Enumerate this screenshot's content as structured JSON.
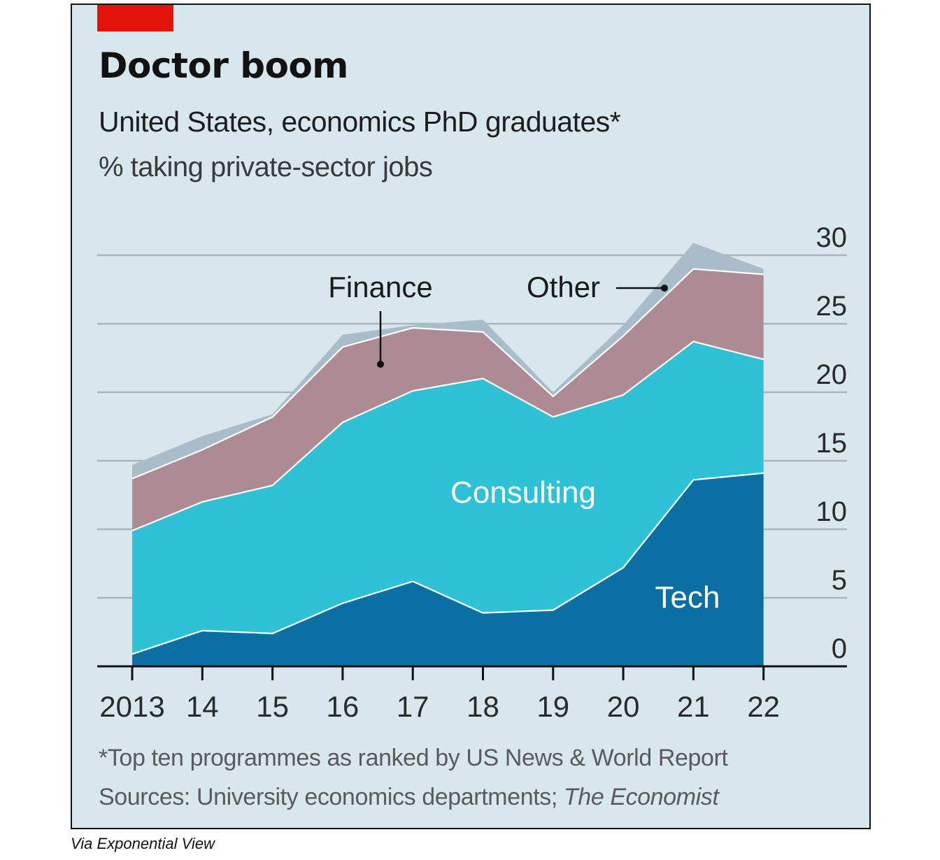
{
  "title": "Doctor boom",
  "subtitle": "United States, economics PhD graduates*",
  "unit_label": "% taking private-sector jobs",
  "footnote": "*Top ten programmes as ranked by US News & World Report",
  "source_prefix": "Sources: University economics departments; ",
  "source_italic": "The Economist",
  "credit": "Via Exponential View",
  "colors": {
    "background": "#d8e6ee",
    "tech": "#0b6fa4",
    "consulting": "#2fc1d6",
    "finance": "#ad8b95",
    "other": "#a8bdc9",
    "accent_red": "#e3120b"
  },
  "chart_data": {
    "type": "area",
    "stacked": true,
    "categories": [
      "2013",
      "14",
      "15",
      "16",
      "17",
      "18",
      "19",
      "20",
      "21",
      "22"
    ],
    "series": [
      {
        "name": "Tech",
        "values": [
          0.9,
          2.6,
          2.4,
          4.6,
          6.2,
          3.9,
          4.1,
          7.2,
          13.6,
          14.1
        ]
      },
      {
        "name": "Consulting",
        "values": [
          9.0,
          9.4,
          10.8,
          13.2,
          13.9,
          17.1,
          14.1,
          12.6,
          10.1,
          8.3
        ]
      },
      {
        "name": "Finance",
        "values": [
          3.8,
          3.8,
          5.0,
          5.5,
          4.6,
          3.4,
          1.5,
          4.3,
          5.3,
          6.2
        ]
      },
      {
        "name": "Other",
        "values": [
          1.0,
          1.0,
          0.2,
          0.9,
          0.2,
          0.9,
          0.3,
          0.8,
          1.9,
          0.4
        ]
      }
    ],
    "ylim": [
      0,
      30
    ],
    "yticks": [
      "0",
      "5",
      "10",
      "15",
      "20",
      "25",
      "30"
    ],
    "yaxis_position": "right",
    "grid": true,
    "labels": {
      "tech": "Tech",
      "consulting": "Consulting",
      "finance": "Finance",
      "other": "Other"
    }
  }
}
